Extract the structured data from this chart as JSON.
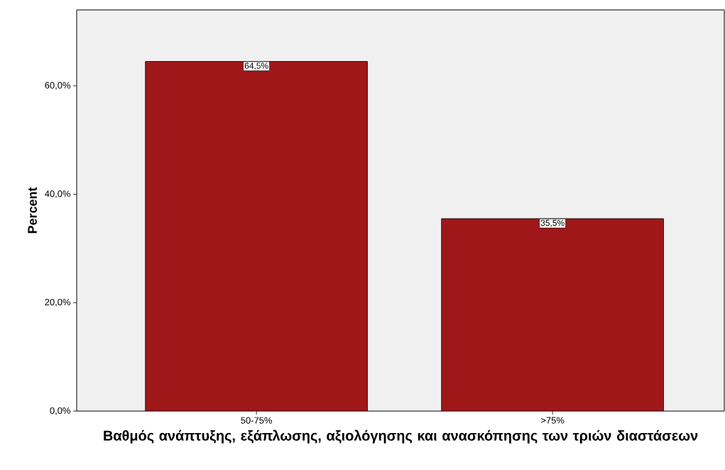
{
  "chart_data": {
    "type": "bar",
    "xlabel": "Βαθμός ανάπτυξης, εξάπλωσης, αξιολόγησης και ανασκόπησης των τριών διαστάσεων",
    "ylabel": "Percent",
    "categories": [
      "50-75%",
      ">75%"
    ],
    "values": [
      64.5,
      35.5
    ],
    "value_labels": [
      "64,5%",
      "35,5%"
    ],
    "color": "#a01719",
    "ylim": [
      0,
      74
    ],
    "yticks": [
      {
        "value": 0,
        "label": "0,0%"
      },
      {
        "value": 20,
        "label": "20,0%"
      },
      {
        "value": 40,
        "label": "40,0%"
      },
      {
        "value": 60,
        "label": "60,0%"
      }
    ]
  }
}
